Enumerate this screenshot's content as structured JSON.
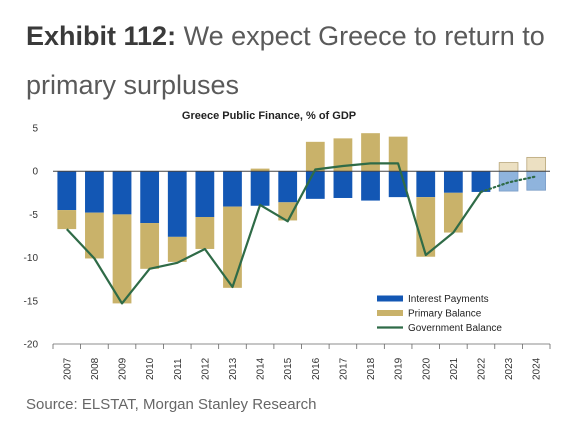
{
  "heading": {
    "exhibit": "Exhibit 112:",
    "text": "We expect Greece to return to primary surpluses"
  },
  "source": "Source: ELSTAT, Morgan Stanley Research",
  "colors": {
    "interest": "#1357b4",
    "primary": "#c9b26a",
    "government": "#2f6b47",
    "interest_forecast": "#8fb4dd",
    "primary_forecast": "#ece0c2"
  },
  "chart_data": {
    "type": "bar",
    "title": "Greece Public Finance, % of GDP",
    "categories": [
      "2007",
      "2008",
      "2009",
      "2010",
      "2011",
      "2012",
      "2013",
      "2014",
      "2015",
      "2016",
      "2017",
      "2018",
      "2019",
      "2020",
      "2021",
      "2022",
      "2023",
      "2024"
    ],
    "forecast_categories": [
      "2023",
      "2024"
    ],
    "ylim": [
      -20,
      5
    ],
    "yticks": [
      5,
      0,
      -5,
      -10,
      -15,
      -20
    ],
    "grid": false,
    "legend_position": "bottom-right",
    "series": [
      {
        "name": "Interest Payments",
        "type": "bar",
        "values": [
          -4.5,
          -4.8,
          -5.0,
          -6.0,
          -7.6,
          -5.3,
          -4.1,
          -4.0,
          -3.6,
          -3.2,
          -3.1,
          -3.4,
          -3.0,
          -3.0,
          -2.5,
          -2.4,
          -2.3,
          -2.2
        ]
      },
      {
        "name": "Primary Balance",
        "type": "bar",
        "values": [
          -2.2,
          -5.3,
          -10.3,
          -5.3,
          -2.9,
          -3.7,
          -9.4,
          0.3,
          -2.1,
          3.4,
          3.8,
          4.4,
          4.0,
          -6.9,
          -4.6,
          0.0,
          1.0,
          1.6
        ]
      },
      {
        "name": "Government Balance",
        "type": "line",
        "values": [
          -6.7,
          -10.1,
          -15.3,
          -11.3,
          -10.6,
          -9.0,
          -13.4,
          -3.9,
          -5.8,
          0.2,
          0.6,
          0.9,
          0.9,
          -9.7,
          -7.1,
          -2.4,
          -1.3,
          -0.6
        ]
      }
    ]
  }
}
